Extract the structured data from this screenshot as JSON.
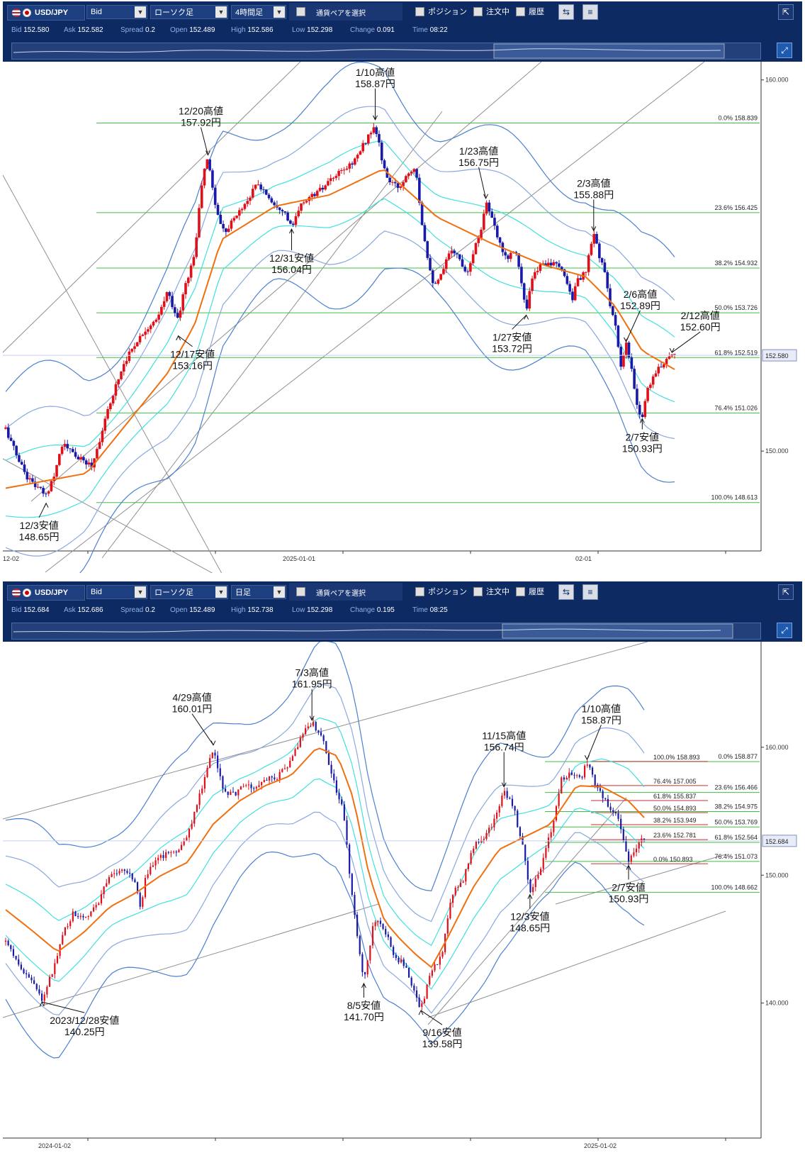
{
  "panels": [
    {
      "toolbar": {
        "pair": "USD/JPY",
        "price_type": "Bid",
        "chart_type": "ローソク足",
        "timeframe": "4時間足",
        "pair_select": "通貨ペアを選択",
        "position": "ポジション",
        "orders": "注文中",
        "history": "履歴"
      },
      "quote": {
        "bid_label": "Bid",
        "bid": "152.580",
        "ask_label": "Ask",
        "ask": "152.582",
        "spread_label": "Spread",
        "spread": "0.2",
        "open_label": "Open",
        "open": "152.489",
        "high_label": "High",
        "high": "152.586",
        "low_label": "Low",
        "low": "152.298",
        "change_label": "Change",
        "change": "0.091",
        "time_label": "Time",
        "time": "08:22"
      }
    },
    {
      "toolbar": {
        "pair": "USD/JPY",
        "price_type": "Bid",
        "chart_type": "ローソク足",
        "timeframe": "日足",
        "pair_select": "通貨ペアを選択",
        "position": "ポジション",
        "orders": "注文中",
        "history": "履歴"
      },
      "quote": {
        "bid_label": "Bid",
        "bid": "152.684",
        "ask_label": "Ask",
        "ask": "152.686",
        "spread_label": "Spread",
        "spread": "0.2",
        "open_label": "Open",
        "open": "152.489",
        "high_label": "High",
        "high": "152.738",
        "low_label": "Low",
        "low": "152.298",
        "change_label": "Change",
        "change": "0.195",
        "time_label": "Time",
        "time": "08:25"
      }
    }
  ],
  "colors": {
    "up": "#e0101a",
    "down": "#1a1aa8",
    "sma": "#f07010",
    "band1": "#40e0e0",
    "band2": "#8aa8e0",
    "band3": "#4a80d0",
    "fib": "#40c040",
    "trend": "#909090",
    "toolbar": "#0d2a63"
  },
  "chart_data": [
    {
      "type": "candlestick",
      "timeframe": "4時間足",
      "ylim": [
        147.5,
        160.3
      ],
      "x_ticks": [
        "12-02",
        "2025-01-01",
        "02-01"
      ],
      "y_ticks": [
        "160.000",
        "150.000"
      ],
      "current_price": "152.580",
      "path": [
        [
          0,
          150.6
        ],
        [
          4,
          149.9
        ],
        [
          8,
          149.3
        ],
        [
          12,
          149.0
        ],
        [
          15,
          148.8
        ],
        [
          18,
          149.4
        ],
        [
          21,
          150.2
        ],
        [
          24,
          150.0
        ],
        [
          27,
          149.8
        ],
        [
          32,
          149.6
        ],
        [
          36,
          150.6
        ],
        [
          40,
          151.6
        ],
        [
          44,
          152.4
        ],
        [
          48,
          152.9
        ],
        [
          52,
          153.3
        ],
        [
          56,
          153.5
        ],
        [
          60,
          154.3
        ],
        [
          64,
          153.5
        ],
        [
          66,
          154.3
        ],
        [
          70,
          155.3
        ],
        [
          73,
          157.4
        ],
        [
          75,
          157.9
        ],
        [
          78,
          156.5
        ],
        [
          81,
          155.9
        ],
        [
          84,
          156.2
        ],
        [
          87,
          156.5
        ],
        [
          90,
          156.8
        ],
        [
          93,
          157.2
        ],
        [
          96,
          157.0
        ],
        [
          99,
          156.7
        ],
        [
          103,
          156.5
        ],
        [
          106,
          156.0
        ],
        [
          110,
          156.7
        ],
        [
          114,
          156.9
        ],
        [
          118,
          157.1
        ],
        [
          122,
          157.4
        ],
        [
          126,
          157.6
        ],
        [
          130,
          157.9
        ],
        [
          133,
          158.3
        ],
        [
          136,
          158.7
        ],
        [
          138,
          158.5
        ],
        [
          140,
          157.6
        ],
        [
          143,
          157.2
        ],
        [
          146,
          157.1
        ],
        [
          149,
          157.5
        ],
        [
          152,
          157.7
        ],
        [
          154,
          156.3
        ],
        [
          157,
          155.0
        ],
        [
          159,
          154.4
        ],
        [
          162,
          154.8
        ],
        [
          165,
          155.5
        ],
        [
          168,
          155.2
        ],
        [
          171,
          154.8
        ],
        [
          173,
          155.3
        ],
        [
          176,
          155.9
        ],
        [
          178,
          156.75
        ],
        [
          180,
          156.3
        ],
        [
          183,
          155.6
        ],
        [
          186,
          155.2
        ],
        [
          189,
          155.5
        ],
        [
          191,
          154.6
        ],
        [
          193,
          153.72
        ],
        [
          195,
          154.6
        ],
        [
          198,
          155.0
        ],
        [
          201,
          155.1
        ],
        [
          204,
          155.0
        ],
        [
          207,
          154.8
        ],
        [
          210,
          154.1
        ],
        [
          212,
          154.6
        ],
        [
          215,
          154.8
        ],
        [
          218,
          155.88
        ],
        [
          220,
          155.3
        ],
        [
          222,
          154.8
        ],
        [
          224,
          154.0
        ],
        [
          226,
          153.4
        ],
        [
          228,
          152.2
        ],
        [
          230,
          152.89
        ],
        [
          232,
          152.2
        ],
        [
          234,
          151.2
        ],
        [
          236,
          150.93
        ],
        [
          238,
          151.7
        ],
        [
          240,
          152.0
        ],
        [
          242,
          152.2
        ],
        [
          244,
          152.4
        ],
        [
          246,
          152.6
        ],
        [
          248,
          152.58
        ]
      ],
      "bands": [
        {
          "role": "sma",
          "path": [
            [
              0,
              149.0
            ],
            [
              30,
              149.4
            ],
            [
              60,
              152.1
            ],
            [
              70,
              153.4
            ],
            [
              80,
              155.7
            ],
            [
              100,
              156.6
            ],
            [
              120,
              156.9
            ],
            [
              140,
              157.6
            ],
            [
              160,
              156.3
            ],
            [
              180,
              155.6
            ],
            [
              200,
              155.0
            ],
            [
              215,
              154.7
            ],
            [
              226,
              153.9
            ],
            [
              236,
              152.7
            ],
            [
              248,
              152.2
            ]
          ]
        },
        {
          "role": "band1",
          "offset": 0.75
        },
        {
          "role": "band1",
          "offset": -0.75
        },
        {
          "role": "band2",
          "offset": 1.6
        },
        {
          "role": "band2",
          "offset": -1.6
        },
        {
          "role": "band3",
          "offset": 2.6
        },
        {
          "role": "band3",
          "offset": -2.6
        }
      ],
      "fibonacci": [
        {
          "ratio": "0.0%",
          "price": "158.839"
        },
        {
          "ratio": "23.6%",
          "price": "156.425"
        },
        {
          "ratio": "38.2%",
          "price": "154.932"
        },
        {
          "ratio": "50.0%",
          "price": "153.726"
        },
        {
          "ratio": "61.8%",
          "price": "152.519"
        },
        {
          "ratio": "76.4%",
          "price": "151.026"
        },
        {
          "ratio": "100.0%",
          "price": "148.613"
        }
      ],
      "annotations": [
        {
          "text": [
            "12/20高値",
            "157.92円"
          ],
          "at": [
            75,
            157.92
          ]
        },
        {
          "text": [
            "1/10高値",
            "158.87円"
          ],
          "at": [
            137,
            158.87
          ]
        },
        {
          "text": [
            "1/23高値",
            "156.75円"
          ],
          "at": [
            178,
            156.75
          ]
        },
        {
          "text": [
            "2/3高値",
            "155.88円"
          ],
          "at": [
            218,
            155.88
          ]
        },
        {
          "text": [
            "2/6高値",
            "152.89円"
          ],
          "at": [
            230,
            152.89
          ]
        },
        {
          "text": [
            "2/12高値",
            "152.60円"
          ],
          "at": [
            247,
            152.6
          ]
        },
        {
          "text": [
            "12/31安値",
            "156.04円"
          ],
          "at": [
            106,
            156.04
          ]
        },
        {
          "text": [
            "12/17安値",
            "153.16円"
          ],
          "at": [
            64,
            153.16
          ]
        },
        {
          "text": [
            "1/27安値",
            "153.72円"
          ],
          "at": [
            193,
            153.72
          ]
        },
        {
          "text": [
            "2/7安値",
            "150.93円"
          ],
          "at": [
            236,
            150.93
          ]
        },
        {
          "text": [
            "12/3安値",
            "148.65円"
          ],
          "at": [
            15,
            148.65
          ]
        }
      ]
    },
    {
      "type": "candlestick",
      "timeframe": "日足",
      "ylim": [
        130.0,
        167.7
      ],
      "x_ticks": [
        "2024-01-02",
        "2025-01-02"
      ],
      "y_ticks": [
        "160.000",
        "150.000",
        "140.000"
      ],
      "current_price": "152.684",
      "path": [
        [
          0,
          144.8
        ],
        [
          6,
          142.6
        ],
        [
          12,
          141.2
        ],
        [
          14,
          140.25
        ],
        [
          18,
          142.4
        ],
        [
          22,
          145.5
        ],
        [
          26,
          147.0
        ],
        [
          30,
          146.6
        ],
        [
          35,
          147.6
        ],
        [
          40,
          150.0
        ],
        [
          45,
          150.4
        ],
        [
          50,
          149.6
        ],
        [
          52,
          147.4
        ],
        [
          54,
          150.0
        ],
        [
          60,
          151.5
        ],
        [
          65,
          151.7
        ],
        [
          70,
          153.0
        ],
        [
          75,
          156.5
        ],
        [
          80,
          160.01
        ],
        [
          84,
          156.5
        ],
        [
          88,
          156.3
        ],
        [
          92,
          157.0
        ],
        [
          96,
          156.9
        ],
        [
          100,
          157.5
        ],
        [
          104,
          157.5
        ],
        [
          110,
          159.0
        ],
        [
          115,
          161.3
        ],
        [
          118,
          161.95
        ],
        [
          122,
          160.8
        ],
        [
          126,
          157.5
        ],
        [
          130,
          155.0
        ],
        [
          134,
          147.4
        ],
        [
          138,
          141.7
        ],
        [
          142,
          146.5
        ],
        [
          146,
          145.8
        ],
        [
          150,
          143.6
        ],
        [
          154,
          143.0
        ],
        [
          158,
          140.4
        ],
        [
          160,
          139.58
        ],
        [
          164,
          142.5
        ],
        [
          168,
          143.6
        ],
        [
          172,
          148.5
        ],
        [
          176,
          149.5
        ],
        [
          180,
          152.2
        ],
        [
          184,
          152.9
        ],
        [
          188,
          154.2
        ],
        [
          192,
          156.74
        ],
        [
          196,
          155.0
        ],
        [
          200,
          151.5
        ],
        [
          202,
          148.65
        ],
        [
          206,
          150.6
        ],
        [
          210,
          153.3
        ],
        [
          214,
          157.5
        ],
        [
          218,
          157.9
        ],
        [
          222,
          157.8
        ],
        [
          224,
          158.87
        ],
        [
          228,
          156.8
        ],
        [
          232,
          155.5
        ],
        [
          236,
          154.5
        ],
        [
          240,
          150.93
        ],
        [
          244,
          152.7
        ],
        [
          246,
          152.68
        ]
      ],
      "bands": [
        {
          "role": "sma",
          "path": [
            [
              0,
              147.3
            ],
            [
              10,
              145.7
            ],
            [
              20,
              144.0
            ],
            [
              30,
              145.5
            ],
            [
              40,
              147.5
            ],
            [
              50,
              148.6
            ],
            [
              60,
              150.0
            ],
            [
              70,
              151.0
            ],
            [
              80,
              154.0
            ],
            [
              90,
              155.8
            ],
            [
              100,
              157.0
            ],
            [
              110,
              157.8
            ],
            [
              120,
              160.0
            ],
            [
              128,
              159.3
            ],
            [
              134,
              156.0
            ],
            [
              140,
              150.0
            ],
            [
              146,
              146.4
            ],
            [
              152,
              145.0
            ],
            [
              158,
              143.8
            ],
            [
              164,
              142.8
            ],
            [
              170,
              145.0
            ],
            [
              180,
              149.0
            ],
            [
              190,
              152.0
            ],
            [
              200,
              153.0
            ],
            [
              210,
              154.0
            ],
            [
              220,
              157.0
            ],
            [
              230,
              156.9
            ],
            [
              240,
              155.8
            ],
            [
              246,
              154.5
            ]
          ]
        },
        {
          "role": "band1",
          "offset": 2.0
        },
        {
          "role": "band1",
          "offset": -2.0
        },
        {
          "role": "band2",
          "offset": 4.2
        },
        {
          "role": "band2",
          "offset": -4.2
        },
        {
          "role": "band3",
          "offset": 7.0
        },
        {
          "role": "band3",
          "offset": -7.0
        }
      ],
      "fibonacci": [
        {
          "ratio": "0.0%",
          "price": "158.877"
        },
        {
          "ratio": "23.6%",
          "price": "156.466"
        },
        {
          "ratio": "38.2%",
          "price": "154.975"
        },
        {
          "ratio": "50.0%",
          "price": "153.769"
        },
        {
          "ratio": "61.8%",
          "price": "152.564"
        },
        {
          "ratio": "76.4%",
          "price": "151.073"
        },
        {
          "ratio": "100.0%",
          "price": "148.662"
        }
      ],
      "fibonacci_inner": [
        {
          "ratio": "100.0%",
          "price": "158.893"
        },
        {
          "ratio": "76.4%",
          "price": "157.005"
        },
        {
          "ratio": "61.8%",
          "price": "155.837"
        },
        {
          "ratio": "50.0%",
          "price": "154.893"
        },
        {
          "ratio": "38.2%",
          "price": "153.949"
        },
        {
          "ratio": "23.6%",
          "price": "152.781"
        },
        {
          "ratio": "0.0%",
          "price": "150.893"
        }
      ],
      "annotations": [
        {
          "text": [
            "4/29高値",
            "160.01円"
          ],
          "at": [
            80,
            160.01
          ]
        },
        {
          "text": [
            "7/3高値",
            "161.95円"
          ],
          "at": [
            118,
            161.95
          ]
        },
        {
          "text": [
            "11/15高値",
            "156.74円"
          ],
          "at": [
            192,
            156.74
          ]
        },
        {
          "text": [
            "1/10高値",
            "158.87円"
          ],
          "at": [
            224,
            158.87
          ]
        },
        {
          "text": [
            "2023/12/28安値",
            "140.25円"
          ],
          "at": [
            14,
            140.25
          ]
        },
        {
          "text": [
            "8/5安値",
            "141.70円"
          ],
          "at": [
            138,
            141.7
          ]
        },
        {
          "text": [
            "9/16安値",
            "139.58円"
          ],
          "at": [
            160,
            139.58
          ]
        },
        {
          "text": [
            "12/3安値",
            "148.65円"
          ],
          "at": [
            202,
            148.65
          ]
        },
        {
          "text": [
            "2/7安値",
            "150.93円"
          ],
          "at": [
            240,
            150.93
          ]
        }
      ]
    }
  ]
}
